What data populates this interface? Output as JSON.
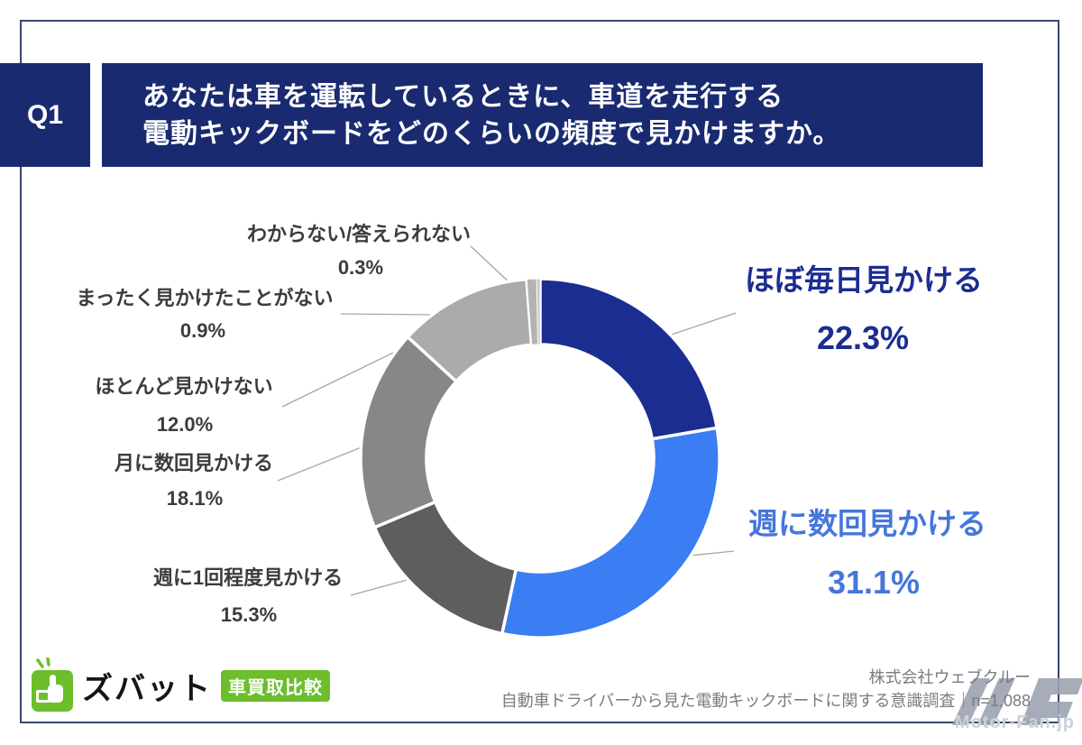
{
  "header": {
    "badge": "Q1",
    "title_line1": "あなたは車を運転しているときに、車道を走行する",
    "title_line2": "電動キックボードをどのくらいの頻度で見かけますか。"
  },
  "chart_data": {
    "type": "pie",
    "variant": "donut",
    "start_angle_deg": 0,
    "direction": "clockwise",
    "unit": "%",
    "title": "",
    "segments": [
      {
        "label": "ほぼ毎日見かける",
        "value": 22.3,
        "pct_text": "22.3%",
        "color": "#1B2D91"
      },
      {
        "label": "週に数回見かける",
        "value": 31.1,
        "pct_text": "31.1%",
        "color": "#3B7DF2"
      },
      {
        "label": "週に1回程度見かける",
        "value": 15.3,
        "pct_text": "15.3%",
        "color": "#5E5E5E"
      },
      {
        "label": "月に数回見かける",
        "value": 18.1,
        "pct_text": "18.1%",
        "color": "#878787"
      },
      {
        "label": "ほとんど見かけない",
        "value": 12.0,
        "pct_text": "12.0%",
        "color": "#ABABAB"
      },
      {
        "label": "まったく見かけたことがない",
        "value": 0.9,
        "pct_text": "0.9%",
        "color": "#B3B3B3"
      },
      {
        "label": "わからない/答えられない",
        "value": 0.3,
        "pct_text": "0.3%",
        "color": "#C9C9C9"
      }
    ]
  },
  "footer": {
    "brand_name": "ズバット",
    "brand_badge": "車買取比較",
    "credit_company": "株式会社ウェブクルー",
    "credit_survey": "自動車ドライバーから見た電動キックボードに関する意識調査｜n=1,088",
    "watermark": "Motor-Fan.jp"
  },
  "colors": {
    "header_bg": "#1A2A70",
    "brand_green": "#6CBE2D",
    "credit_gray": "#7B7B83",
    "label_dark": "#3C3C3C",
    "label_navy": "#1B2D91",
    "label_blue": "#4577DB",
    "leader_line": "#A6A6A6",
    "border": "#3A456F"
  }
}
